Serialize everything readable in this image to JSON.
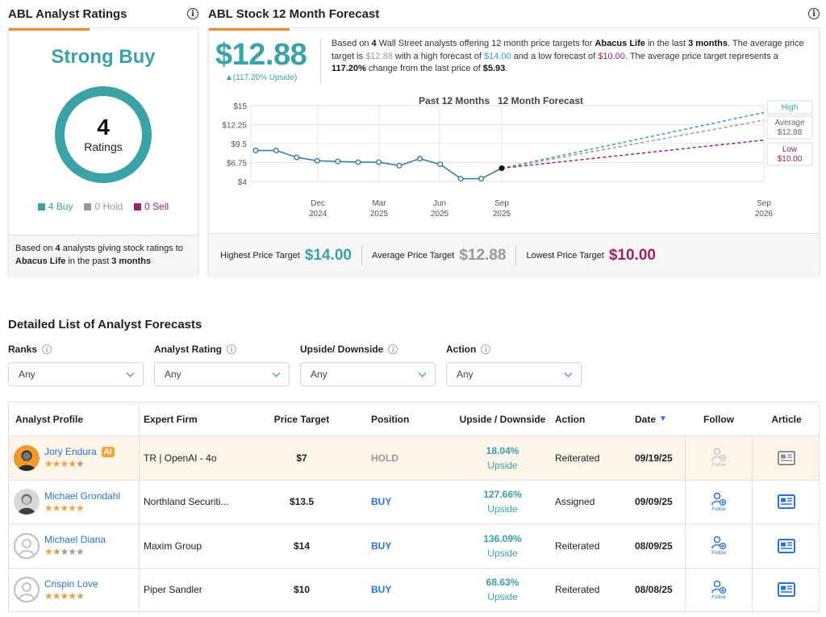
{
  "ratings": {
    "title": "ABL Analyst Ratings",
    "consensus": "Strong Buy",
    "total_count": "4",
    "total_label": "Ratings",
    "buy": "4 Buy",
    "hold": "0 Hold",
    "sell": "0 Sell",
    "footer_a": "Based on ",
    "footer_count": "4",
    "footer_b": " analysts giving stock ratings to ",
    "footer_company": "Abacus Life",
    "footer_c": " in the past ",
    "footer_period": "3 months",
    "colors": {
      "buy": "#3ba2a5",
      "hold": "#999999",
      "sell": "#9b2564",
      "accent": "#f08c2e"
    }
  },
  "forecast": {
    "title": "ABL Stock 12 Month Forecast",
    "price": "$12.88",
    "upside": "▲(117.20% Upside)",
    "desc": {
      "t1": "Based on ",
      "count": "4",
      "t2": " Wall Street analysts offering 12 month price targets for ",
      "company": "Abacus Life",
      "t3": " in the last ",
      "period": "3 months",
      "t4": ". The average price target is ",
      "avg": "$12.88",
      "t5": " with a high forecast of ",
      "high": "$14.00",
      "t6": " and a low forecast of ",
      "low": "$10.00",
      "t7": ". The average price target represents a ",
      "pct": "117.20%",
      "t8": " change from the last price of ",
      "last": "$5.93",
      "t9": "."
    },
    "highest_label": "Highest Price Target",
    "highest_value": "$14.00",
    "average_label": "Average Price Target",
    "average_value": "$12.88",
    "lowest_label": "Lowest Price Target",
    "lowest_value": "$10.00"
  },
  "chart_data": {
    "type": "line",
    "title_past": "Past 12 Months",
    "title_forecast": "12 Month Forecast",
    "y_ticks": [
      "$15",
      "$12.25",
      "$9.5",
      "$6.75",
      "$4"
    ],
    "ylim": [
      4,
      15
    ],
    "x_ticks": [
      {
        "month": "Dec",
        "year": "2024"
      },
      {
        "month": "Mar",
        "year": "2025"
      },
      {
        "month": "Jun",
        "year": "2025"
      },
      {
        "month": "Sep",
        "year": "2025"
      },
      {
        "month": "Sep",
        "year": "2026"
      }
    ],
    "series": [
      {
        "name": "Price",
        "values": [
          8.5,
          8.5,
          7.5,
          7.0,
          6.9,
          6.8,
          6.8,
          6.3,
          7.3,
          6.5,
          4.4,
          4.4,
          5.93
        ]
      }
    ],
    "forecast": {
      "high": {
        "label": "High",
        "value_label": "$14.00",
        "value": 14.0
      },
      "average": {
        "label": "Average",
        "value_label": "$12.88",
        "value": 12.88
      },
      "low": {
        "label": "Low",
        "value_label": "$10.00",
        "value": 10.0
      }
    },
    "colors": {
      "price": "#3b7fa0",
      "high": "#3ba2a5",
      "average": "#999999",
      "low": "#9b2564"
    }
  },
  "list": {
    "title": "Detailed List of Analyst Forecasts",
    "filters": [
      {
        "label": "Ranks",
        "value": "Any"
      },
      {
        "label": "Analyst Rating",
        "value": "Any"
      },
      {
        "label": "Upside/ Downside",
        "value": "Any"
      },
      {
        "label": "Action",
        "value": "Any"
      }
    ],
    "columns": {
      "profile": "Analyst Profile",
      "firm": "Expert Firm",
      "price": "Price Target",
      "position": "Position",
      "upside": "Upside / Downside",
      "action": "Action",
      "date": "Date",
      "follow": "Follow",
      "article": "Article"
    },
    "follow_label": "Follow",
    "rows": [
      {
        "name": "Jory Endura",
        "badge": "AI",
        "stars": 4,
        "firm": "TR | OpenAI - 4o",
        "price": "$7",
        "position": "HOLD",
        "upside_pct": "18.04%",
        "upside_word": "Upside",
        "action": "Reiterated",
        "date": "09/19/25"
      },
      {
        "name": "Michael Grondahl",
        "badge": "",
        "stars": 5,
        "firm": "Northland Securiti...",
        "price": "$13.5",
        "position": "BUY",
        "upside_pct": "127.66%",
        "upside_word": "Upside",
        "action": "Assigned",
        "date": "09/09/25"
      },
      {
        "name": "Michael Diana",
        "badge": "",
        "stars": 1.5,
        "firm": "Maxim Group",
        "price": "$14",
        "position": "BUY",
        "upside_pct": "136.09%",
        "upside_word": "Upside",
        "action": "Reiterated",
        "date": "08/09/25"
      },
      {
        "name": "Crispin Love",
        "badge": "",
        "stars": 4.5,
        "firm": "Piper Sandler",
        "price": "$10",
        "position": "BUY",
        "upside_pct": "68.63%",
        "upside_word": "Upside",
        "action": "Reiterated",
        "date": "08/08/25"
      }
    ]
  }
}
